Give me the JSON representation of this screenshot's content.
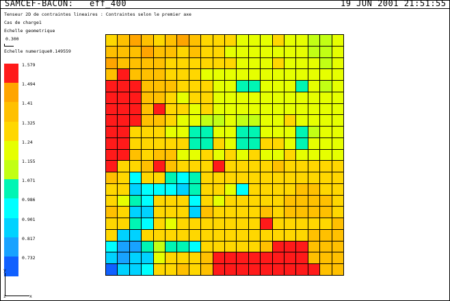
{
  "window": {
    "app_title": "SAMCEF-BACON:",
    "file_name": "eff_400",
    "datetime": "19 JUN 2001 21:51:55"
  },
  "header": {
    "description": "Tenseur 2D de contraintes lineaires : Contraintes selon le premier axe",
    "load_case": "Cas de charge1",
    "geometric_scale_label": "Echelle geometrique",
    "geometric_scale_value": "0.300",
    "numeric_scale": "Echelle numerique0.149559"
  },
  "legend": [
    {
      "label": "1.579",
      "color": "#ff1a1a"
    },
    {
      "label": "1.494",
      "color": "#ffa500"
    },
    {
      "label": "1.41",
      "color": "#ffc000"
    },
    {
      "label": "1.325",
      "color": "#ffd700"
    },
    {
      "label": "1.24",
      "color": "#e6ff00"
    },
    {
      "label": "1.155",
      "color": "#c2ff14"
    },
    {
      "label": "1.071",
      "color": "#00f5b4"
    },
    {
      "label": "0.986",
      "color": "#00ffff"
    },
    {
      "label": "0.901",
      "color": "#00d2ff"
    },
    {
      "label": "0.817",
      "color": "#18a2ff"
    },
    {
      "label": "0.732",
      "color": "#1060ff"
    }
  ],
  "grid": {
    "rows": [
      [
        3,
        2,
        1,
        2,
        3,
        2,
        1,
        2,
        3,
        3,
        3,
        4,
        4,
        4,
        3,
        4,
        4,
        5,
        5,
        4
      ],
      [
        2,
        2,
        2,
        1,
        2,
        2,
        3,
        2,
        3,
        3,
        4,
        4,
        4,
        4,
        4,
        4,
        4,
        5,
        5,
        4
      ],
      [
        1,
        2,
        2,
        2,
        2,
        3,
        3,
        3,
        3,
        3,
        3,
        4,
        4,
        4,
        3,
        4,
        4,
        4,
        5,
        4
      ],
      [
        2,
        0,
        2,
        2,
        2,
        3,
        3,
        3,
        4,
        4,
        4,
        4,
        4,
        4,
        4,
        4,
        4,
        4,
        4,
        4
      ],
      [
        0,
        0,
        0,
        2,
        2,
        2,
        3,
        3,
        3,
        4,
        4,
        6,
        6,
        4,
        4,
        4,
        6,
        4,
        5,
        4
      ],
      [
        0,
        0,
        0,
        2,
        2,
        3,
        4,
        3,
        3,
        4,
        4,
        4,
        4,
        4,
        4,
        4,
        4,
        4,
        4,
        4
      ],
      [
        0,
        0,
        0,
        2,
        0,
        3,
        3,
        4,
        3,
        4,
        4,
        4,
        4,
        4,
        4,
        4,
        4,
        4,
        4,
        4
      ],
      [
        0,
        0,
        0,
        2,
        2,
        3,
        4,
        4,
        5,
        5,
        4,
        5,
        5,
        4,
        4,
        3,
        4,
        4,
        4,
        4
      ],
      [
        0,
        0,
        3,
        3,
        3,
        4,
        4,
        6,
        6,
        4,
        4,
        6,
        6,
        4,
        4,
        4,
        6,
        5,
        4,
        4
      ],
      [
        0,
        0,
        3,
        3,
        3,
        3,
        3,
        6,
        6,
        3,
        4,
        6,
        6,
        3,
        3,
        4,
        6,
        4,
        4,
        4
      ],
      [
        0,
        0,
        2,
        3,
        2,
        2,
        4,
        4,
        3,
        4,
        3,
        4,
        3,
        4,
        4,
        3,
        4,
        4,
        4,
        4
      ],
      [
        0,
        3,
        3,
        2,
        0,
        2,
        3,
        3,
        3,
        0,
        3,
        3,
        3,
        3,
        2,
        3,
        3,
        3,
        3,
        3
      ],
      [
        2,
        3,
        7,
        3,
        3,
        6,
        7,
        6,
        3,
        3,
        3,
        3,
        3,
        3,
        3,
        3,
        3,
        3,
        3,
        3
      ],
      [
        3,
        3,
        8,
        7,
        7,
        7,
        8,
        6,
        3,
        3,
        4,
        7,
        3,
        3,
        3,
        3,
        2,
        2,
        3,
        3
      ],
      [
        3,
        4,
        6,
        7,
        3,
        3,
        3,
        7,
        3,
        4,
        3,
        3,
        3,
        3,
        3,
        2,
        2,
        2,
        2,
        3
      ],
      [
        2,
        3,
        8,
        8,
        3,
        3,
        3,
        8,
        2,
        3,
        3,
        3,
        3,
        2,
        3,
        2,
        2,
        2,
        2,
        3
      ],
      [
        3,
        3,
        6,
        7,
        3,
        4,
        3,
        3,
        3,
        3,
        3,
        3,
        3,
        0,
        3,
        3,
        3,
        3,
        3,
        2
      ],
      [
        3,
        8,
        8,
        3,
        3,
        3,
        3,
        3,
        3,
        3,
        3,
        3,
        3,
        3,
        3,
        3,
        3,
        2,
        2,
        2
      ],
      [
        7,
        9,
        9,
        6,
        5,
        6,
        6,
        7,
        3,
        3,
        3,
        3,
        3,
        2,
        0,
        0,
        0,
        2,
        2,
        2
      ],
      [
        8,
        9,
        8,
        8,
        4,
        3,
        3,
        3,
        2,
        0,
        0,
        0,
        0,
        0,
        0,
        0,
        0,
        2,
        2,
        2
      ],
      [
        10,
        8,
        8,
        7,
        3,
        3,
        2,
        3,
        2,
        0,
        0,
        0,
        0,
        0,
        0,
        0,
        0,
        0,
        2,
        2
      ]
    ]
  },
  "axes": {
    "y_label": "y",
    "z_label": "z",
    "x_label": "x"
  }
}
